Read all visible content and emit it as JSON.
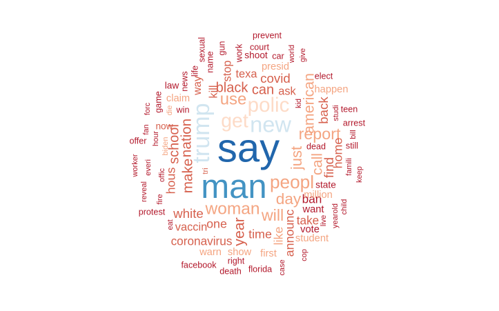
{
  "chart_data": {
    "type": "wordcloud",
    "title": "",
    "colors": {
      "deep_blue": "#2166ac",
      "mid_blue": "#4393c3",
      "light_blue": "#d1e5f0",
      "pale_peach": "#fddbc7",
      "salmon": "#f4a582",
      "coral": "#d6604d",
      "dark_red": "#b2182b"
    },
    "words": [
      {
        "text": "say",
        "freq": 100,
        "color": "#2166ac"
      },
      {
        "text": "man",
        "freq": 78,
        "color": "#4393c3"
      },
      {
        "text": "trump",
        "freq": 45,
        "color": "#d1e5f0"
      },
      {
        "text": "new",
        "freq": 42,
        "color": "#d1e5f0"
      },
      {
        "text": "polic",
        "freq": 36,
        "color": "#fddbc7"
      },
      {
        "text": "get",
        "freq": 34,
        "color": "#fddbc7"
      },
      {
        "text": "peopl",
        "freq": 30,
        "color": "#f4a582"
      },
      {
        "text": "woman",
        "freq": 27,
        "color": "#f4a582"
      },
      {
        "text": "use",
        "freq": 26,
        "color": "#f4a582"
      },
      {
        "text": "will",
        "freq": 25,
        "color": "#f4a582"
      },
      {
        "text": "report",
        "freq": 25,
        "color": "#f4a582"
      },
      {
        "text": "day",
        "freq": 24,
        "color": "#f4a582"
      },
      {
        "text": "just",
        "freq": 23,
        "color": "#f4a582"
      },
      {
        "text": "call",
        "freq": 22,
        "color": "#f4a582"
      },
      {
        "text": "american",
        "freq": 22,
        "color": "#f4a582"
      },
      {
        "text": "year",
        "freq": 22,
        "color": "#d6604d"
      },
      {
        "text": "make",
        "freq": 21,
        "color": "#d6604d"
      },
      {
        "text": "nation",
        "freq": 21,
        "color": "#d6604d"
      },
      {
        "text": "school",
        "freq": 20,
        "color": "#d6604d"
      },
      {
        "text": "black",
        "freq": 20,
        "color": "#d6604d"
      },
      {
        "text": "can",
        "freq": 20,
        "color": "#d6604d"
      },
      {
        "text": "white",
        "freq": 18,
        "color": "#d6604d"
      },
      {
        "text": "covid",
        "freq": 18,
        "color": "#d6604d"
      },
      {
        "text": "back",
        "freq": 18,
        "color": "#d6604d"
      },
      {
        "text": "find",
        "freq": 18,
        "color": "#d6604d"
      },
      {
        "text": "home",
        "freq": 17,
        "color": "#d6604d"
      },
      {
        "text": "hous",
        "freq": 17,
        "color": "#d6604d"
      },
      {
        "text": "one",
        "freq": 17,
        "color": "#d6604d"
      },
      {
        "text": "time",
        "freq": 17,
        "color": "#d6604d"
      },
      {
        "text": "like",
        "freq": 17,
        "color": "#f4a582"
      },
      {
        "text": "announc",
        "freq": 17,
        "color": "#d6604d"
      },
      {
        "text": "ban",
        "freq": 16,
        "color": "#b2182b"
      },
      {
        "text": "take",
        "freq": 16,
        "color": "#d6604d"
      },
      {
        "text": "coronavirus",
        "freq": 16,
        "color": "#d6604d"
      },
      {
        "text": "vaccin",
        "freq": 15,
        "color": "#d6604d"
      },
      {
        "text": "kill",
        "freq": 15,
        "color": "#d6604d"
      },
      {
        "text": "stop",
        "freq": 15,
        "color": "#d6604d"
      },
      {
        "text": "texa",
        "freq": 15,
        "color": "#d6604d"
      },
      {
        "text": "ask",
        "freq": 15,
        "color": "#d6604d"
      },
      {
        "text": "way",
        "freq": 14,
        "color": "#d6604d"
      },
      {
        "text": "presid",
        "freq": 13,
        "color": "#f4a582"
      },
      {
        "text": "claim",
        "freq": 13,
        "color": "#f4a582"
      },
      {
        "text": "happen",
        "freq": 13,
        "color": "#f4a582"
      },
      {
        "text": "show",
        "freq": 13,
        "color": "#f4a582"
      },
      {
        "text": "warn",
        "freq": 13,
        "color": "#f4a582"
      },
      {
        "text": "first",
        "freq": 13,
        "color": "#f4a582"
      },
      {
        "text": "million",
        "freq": 13,
        "color": "#f4a582"
      },
      {
        "text": "student",
        "freq": 13,
        "color": "#f4a582"
      },
      {
        "text": "vote",
        "freq": 13,
        "color": "#b2182b"
      },
      {
        "text": "want",
        "freq": 13,
        "color": "#b2182b"
      },
      {
        "text": "state",
        "freq": 12,
        "color": "#b2182b"
      },
      {
        "text": "now",
        "freq": 12,
        "color": "#d6604d"
      },
      {
        "text": "law",
        "freq": 12,
        "color": "#b2182b"
      },
      {
        "text": "shoot",
        "freq": 12,
        "color": "#b2182b"
      },
      {
        "text": "court",
        "freq": 11,
        "color": "#b2182b"
      },
      {
        "text": "prevent",
        "freq": 11,
        "color": "#b2182b"
      },
      {
        "text": "car",
        "freq": 11,
        "color": "#b2182b"
      },
      {
        "text": "elect",
        "freq": 11,
        "color": "#b2182b"
      },
      {
        "text": "teen",
        "freq": 11,
        "color": "#b2182b"
      },
      {
        "text": "arrest",
        "freq": 11,
        "color": "#b2182b"
      },
      {
        "text": "dead",
        "freq": 11,
        "color": "#b2182b"
      },
      {
        "text": "still",
        "freq": 11,
        "color": "#b2182b"
      },
      {
        "text": "offer",
        "freq": 11,
        "color": "#b2182b"
      },
      {
        "text": "protest",
        "freq": 11,
        "color": "#b2182b"
      },
      {
        "text": "facebook",
        "freq": 11,
        "color": "#b2182b"
      },
      {
        "text": "right",
        "freq": 11,
        "color": "#b2182b"
      },
      {
        "text": "florida",
        "freq": 11,
        "color": "#b2182b"
      },
      {
        "text": "death",
        "freq": 11,
        "color": "#b2182b"
      },
      {
        "text": "win",
        "freq": 11,
        "color": "#b2182b"
      },
      {
        "text": "game",
        "freq": 11,
        "color": "#b2182b"
      },
      {
        "text": "news",
        "freq": 11,
        "color": "#b2182b"
      },
      {
        "text": "life",
        "freq": 11,
        "color": "#b2182b"
      },
      {
        "text": "sexual",
        "freq": 11,
        "color": "#b2182b"
      },
      {
        "text": "name",
        "freq": 11,
        "color": "#b2182b"
      },
      {
        "text": "gun",
        "freq": 11,
        "color": "#b2182b"
      },
      {
        "text": "work",
        "freq": 11,
        "color": "#b2182b"
      },
      {
        "text": "world",
        "freq": 10,
        "color": "#b2182b"
      },
      {
        "text": "give",
        "freq": 10,
        "color": "#b2182b"
      },
      {
        "text": "kid",
        "freq": 10,
        "color": "#b2182b"
      },
      {
        "text": "studi",
        "freq": 10,
        "color": "#b2182b"
      },
      {
        "text": "bill",
        "freq": 10,
        "color": "#b2182b"
      },
      {
        "text": "famili",
        "freq": 10,
        "color": "#b2182b"
      },
      {
        "text": "keep",
        "freq": 10,
        "color": "#b2182b"
      },
      {
        "text": "child",
        "freq": 10,
        "color": "#b2182b"
      },
      {
        "text": "yearold",
        "freq": 10,
        "color": "#b2182b"
      },
      {
        "text": "live",
        "freq": 10,
        "color": "#b2182b"
      },
      {
        "text": "cop",
        "freq": 10,
        "color": "#b2182b"
      },
      {
        "text": "case",
        "freq": 10,
        "color": "#b2182b"
      },
      {
        "text": "tri",
        "freq": 10,
        "color": "#d6604d"
      },
      {
        "text": "eat",
        "freq": 10,
        "color": "#b2182b"
      },
      {
        "text": "fire",
        "freq": 10,
        "color": "#b2182b"
      },
      {
        "text": "offic",
        "freq": 10,
        "color": "#b2182b"
      },
      {
        "text": "reveal",
        "freq": 10,
        "color": "#b2182b"
      },
      {
        "text": "everi",
        "freq": 10,
        "color": "#b2182b"
      },
      {
        "text": "worker",
        "freq": 10,
        "color": "#b2182b"
      },
      {
        "text": "fan",
        "freq": 10,
        "color": "#b2182b"
      },
      {
        "text": "forc",
        "freq": 10,
        "color": "#b2182b"
      },
      {
        "text": "hour",
        "freq": 10,
        "color": "#b2182b"
      },
      {
        "text": "biden",
        "freq": 10,
        "color": "#f4a582"
      },
      {
        "text": "die",
        "freq": 10,
        "color": "#f4a582"
      }
    ]
  }
}
